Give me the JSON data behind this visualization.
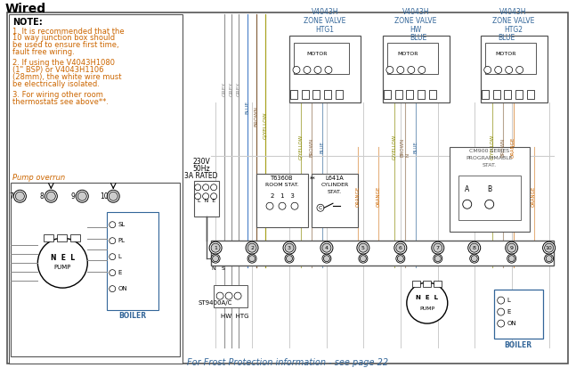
{
  "title": "Wired",
  "bg_color": "#ffffff",
  "black": "#000000",
  "dark_gray": "#555555",
  "gray": "#888888",
  "light_gray": "#cccccc",
  "blue_c": "#336699",
  "orange_c": "#cc6600",
  "note_color": "#cc6600",
  "footer": "For Frost Protection information - see page 22",
  "note_title": "NOTE:",
  "note_lines": [
    "1. It is recommended that the",
    "10 way junction box should",
    "be used to ensure first time,",
    "fault free wiring.",
    "",
    "2. If using the V4043H1080",
    "(1\" BSP) or V4043H1106",
    "(28mm), the white wire must",
    "be electrically isolated.",
    "",
    "3. For wiring other room",
    "thermostats see above**."
  ],
  "junction_nums": [
    "1",
    "2",
    "3",
    "4",
    "5",
    "6",
    "7",
    "8",
    "9",
    "10"
  ]
}
